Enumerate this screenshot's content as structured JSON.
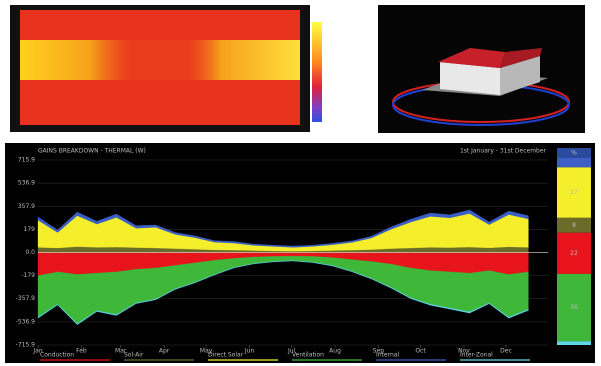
{
  "chart_data": [
    {
      "type": "stacked-area",
      "title": "GAINS BREAKDOWN - THERMAL (W)",
      "subtitle": "1st January - 31st December",
      "x": [
        1,
        15,
        29,
        43,
        57,
        71,
        85,
        99,
        113,
        127,
        141,
        155,
        169,
        183,
        197,
        211,
        225,
        239,
        253,
        267,
        281,
        295,
        309,
        323,
        337,
        351
      ],
      "xlim": [
        1,
        365
      ],
      "xticks": [
        {
          "value": 1,
          "label": "Jan"
        },
        {
          "value": 32,
          "label": "Feb"
        },
        {
          "value": 60,
          "label": "Mar"
        },
        {
          "value": 91,
          "label": "Apr"
        },
        {
          "value": 121,
          "label": "May"
        },
        {
          "value": 152,
          "label": "Jun"
        },
        {
          "value": 182,
          "label": "Jul"
        },
        {
          "value": 213,
          "label": "Aug"
        },
        {
          "value": 244,
          "label": "Sep"
        },
        {
          "value": 274,
          "label": "Oct"
        },
        {
          "value": 305,
          "label": "Nov"
        },
        {
          "value": 335,
          "label": "Dec"
        }
      ],
      "ylim": [
        -715.9,
        715.9
      ],
      "yticks": [
        715.9,
        536.9,
        357.9,
        179.0,
        {
          "value": 0,
          "label": "0.0"
        },
        -179.0,
        -357.9,
        -536.9,
        -715.9
      ],
      "grid": true,
      "series": [
        {
          "name": "Conduction",
          "color": "#e8141c",
          "values": [
            -180,
            -150,
            -170,
            -160,
            -150,
            -130,
            -120,
            -100,
            -80,
            -60,
            -45,
            -35,
            -30,
            -28,
            -30,
            -40,
            -55,
            -70,
            -90,
            -120,
            -140,
            -150,
            -160,
            -140,
            -170,
            -150
          ]
        },
        {
          "name": "Sol-Air",
          "color": "#6b6b2a",
          "values": [
            40,
            35,
            45,
            40,
            42,
            38,
            35,
            30,
            25,
            20,
            18,
            15,
            12,
            10,
            12,
            15,
            18,
            22,
            30,
            35,
            40,
            38,
            42,
            36,
            44,
            40
          ]
        },
        {
          "name": "Direct Solar",
          "color": "#f4ef2a",
          "values": [
            210,
            120,
            240,
            180,
            230,
            150,
            160,
            110,
            90,
            60,
            55,
            40,
            35,
            30,
            35,
            45,
            60,
            90,
            150,
            200,
            240,
            230,
            260,
            180,
            250,
            220
          ]
        },
        {
          "name": "Ventilation",
          "color": "#3fb83a",
          "values": [
            -320,
            -250,
            -380,
            -290,
            -330,
            -260,
            -240,
            -180,
            -150,
            -110,
            -70,
            -50,
            -40,
            -35,
            -45,
            -60,
            -90,
            -130,
            -180,
            -230,
            -260,
            -280,
            -300,
            -250,
            -330,
            -290
          ]
        },
        {
          "name": "Internal",
          "color": "#3b5fc7",
          "values": [
            25,
            20,
            28,
            22,
            26,
            20,
            18,
            15,
            14,
            12,
            12,
            10,
            10,
            10,
            10,
            11,
            12,
            14,
            18,
            22,
            26,
            24,
            28,
            20,
            27,
            24
          ]
        },
        {
          "name": "Inter-Zonal",
          "color": "#5fd6e8",
          "values": [
            -8,
            -6,
            -9,
            -7,
            -8,
            -6,
            -6,
            -5,
            -5,
            -4,
            -4,
            -3,
            -3,
            -3,
            -3,
            -4,
            -4,
            -5,
            -6,
            -7,
            -8,
            -8,
            -9,
            -7,
            -9,
            -8
          ]
        }
      ]
    },
    {
      "type": "stacked-column",
      "title": "%",
      "values": [
        5,
        27,
        8,
        22,
        36,
        2
      ],
      "colors": [
        "#3b5fc7",
        "#f4ef2a",
        "#6b6b2a",
        "#e8141c",
        "#3fb83a",
        "#5fd6e8"
      ]
    }
  ]
}
